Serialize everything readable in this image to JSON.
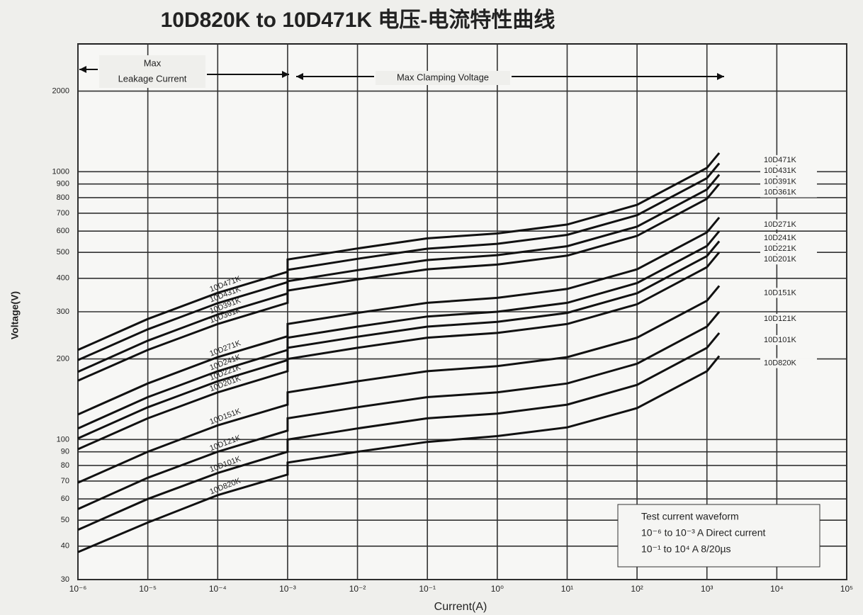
{
  "chart_data": {
    "type": "line",
    "title": "10D820K to 10D471K 电压-电流特性曲线",
    "x_label": "Current(A)",
    "y_label": "Voltage(V)",
    "xscale": "log",
    "yscale": "log",
    "grid": true,
    "xlim": [
      1e-06,
      100000
    ],
    "ylim": [
      30,
      3000
    ],
    "xticks": [
      {
        "value": 1e-06,
        "label": "10⁻⁶"
      },
      {
        "value": 1e-05,
        "label": "10⁻⁵"
      },
      {
        "value": 0.0001,
        "label": "10⁻⁴"
      },
      {
        "value": 0.001,
        "label": "10⁻³"
      },
      {
        "value": 0.01,
        "label": "10⁻²"
      },
      {
        "value": 0.1,
        "label": "10⁻¹"
      },
      {
        "value": 1,
        "label": "10⁰"
      },
      {
        "value": 10,
        "label": "10¹"
      },
      {
        "value": 100,
        "label": "10²"
      },
      {
        "value": 1000,
        "label": "10³"
      },
      {
        "value": 10000,
        "label": "10⁴"
      },
      {
        "value": 100000,
        "label": "10⁵"
      }
    ],
    "yticks": [
      30,
      40,
      50,
      60,
      70,
      80,
      90,
      100,
      200,
      300,
      400,
      500,
      600,
      700,
      800,
      900,
      1000,
      2000
    ],
    "x": [
      1e-06,
      1e-05,
      0.0001,
      0.001,
      0.001,
      0.01,
      0.1,
      1,
      10,
      100,
      1000,
      1500
    ],
    "series": [
      {
        "name": "10D471K",
        "color": "#111111",
        "values": [
          216,
          282,
          353,
          423,
          470,
          517,
          564,
          588,
          635,
          752,
          1034,
          1175
        ]
      },
      {
        "name": "10D431K",
        "color": "#111111",
        "values": [
          198,
          258,
          323,
          387,
          430,
          473,
          516,
          538,
          581,
          688,
          946,
          1075
        ]
      },
      {
        "name": "10D391K",
        "color": "#111111",
        "values": [
          179,
          234,
          293,
          351,
          390,
          429,
          468,
          488,
          527,
          624,
          858,
          975
        ]
      },
      {
        "name": "10D361K",
        "color": "#111111",
        "values": [
          166,
          216,
          270,
          324,
          360,
          396,
          432,
          450,
          486,
          576,
          792,
          900
        ]
      },
      {
        "name": "10D271K",
        "color": "#111111",
        "values": [
          124,
          162,
          203,
          243,
          270,
          297,
          324,
          338,
          365,
          432,
          594,
          675
        ]
      },
      {
        "name": "10D241K",
        "color": "#111111",
        "values": [
          110,
          144,
          180,
          216,
          240,
          264,
          288,
          300,
          324,
          384,
          528,
          600
        ]
      },
      {
        "name": "10D221K",
        "color": "#111111",
        "values": [
          101,
          132,
          165,
          198,
          220,
          242,
          264,
          275,
          297,
          352,
          484,
          550
        ]
      },
      {
        "name": "10D201K",
        "color": "#111111",
        "values": [
          92,
          120,
          150,
          180,
          200,
          220,
          240,
          250,
          270,
          320,
          440,
          500
        ]
      },
      {
        "name": "10D151K",
        "color": "#111111",
        "values": [
          69,
          90,
          113,
          135,
          150,
          165,
          180,
          188,
          203,
          240,
          330,
          375
        ]
      },
      {
        "name": "10D121K",
        "color": "#111111",
        "values": [
          55,
          72,
          90,
          108,
          120,
          132,
          144,
          150,
          162,
          192,
          264,
          300
        ]
      },
      {
        "name": "10D101K",
        "color": "#111111",
        "values": [
          46,
          60,
          75,
          90,
          100,
          110,
          120,
          125,
          135,
          160,
          220,
          250
        ]
      },
      {
        "name": "10D820K",
        "color": "#111111",
        "values": [
          38,
          49,
          62,
          74,
          82,
          90,
          98,
          103,
          111,
          131,
          180,
          205
        ]
      }
    ],
    "annotations": [
      "Max",
      "Leakage Current",
      "Max Clamping Voltage"
    ],
    "note": {
      "title": "Test current waveform",
      "lines": [
        "10⁻⁶ to 10⁻³ A Direct current",
        "10⁻¹ to 10⁴ A 8/20µs"
      ]
    }
  }
}
